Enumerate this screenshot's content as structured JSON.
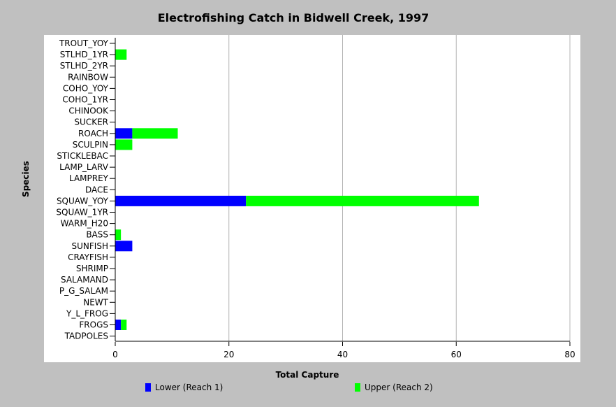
{
  "colors": {
    "background": "#c0c0c0",
    "plot_background": "#ffffff",
    "grid": "#b4b4b4",
    "lower": "#0000ff",
    "upper": "#00ff00"
  },
  "chart_data": {
    "type": "bar",
    "orientation": "horizontal",
    "stacked": true,
    "title": "Electrofishing Catch in Bidwell Creek, 1997",
    "xlabel": "Total Capture",
    "ylabel": "Species",
    "xlim": [
      0,
      80
    ],
    "xticks": [
      0,
      20,
      40,
      60,
      80
    ],
    "grid": "vertical",
    "legend_position": "bottom",
    "categories": [
      "TROUT_YOY",
      "STLHD_1YR",
      "STLHD_2YR",
      "RAINBOW",
      "COHO_YOY",
      "COHO_1YR",
      "CHINOOK",
      "SUCKER",
      "ROACH",
      "SCULPIN",
      "STICKLEBAC",
      "LAMP_LARV",
      "LAMPREY",
      "DACE",
      "SQUAW_YOY",
      "SQUAW_1YR",
      "WARM_H20",
      "BASS",
      "SUNFISH",
      "CRAYFISH",
      "SHRIMP",
      "SALAMAND",
      "P_G_SALAM",
      "NEWT",
      "Y_L_FROG",
      "FROGS",
      "TADPOLES"
    ],
    "series": [
      {
        "name": "Lower (Reach 1)",
        "color": "#0000ff",
        "values": [
          0,
          0,
          0,
          0,
          0,
          0,
          0,
          0,
          3,
          0,
          0,
          0,
          0,
          0,
          23,
          0,
          0,
          0,
          3,
          0,
          0,
          0,
          0,
          0,
          0,
          1,
          0
        ]
      },
      {
        "name": "Upper (Reach 2)",
        "color": "#00ff00",
        "values": [
          0,
          2,
          0,
          0,
          0,
          0,
          0,
          0,
          8,
          3,
          0,
          0,
          0,
          0,
          41,
          0,
          0,
          1,
          0,
          0,
          0,
          0,
          0,
          0,
          0,
          1,
          0
        ]
      }
    ]
  }
}
